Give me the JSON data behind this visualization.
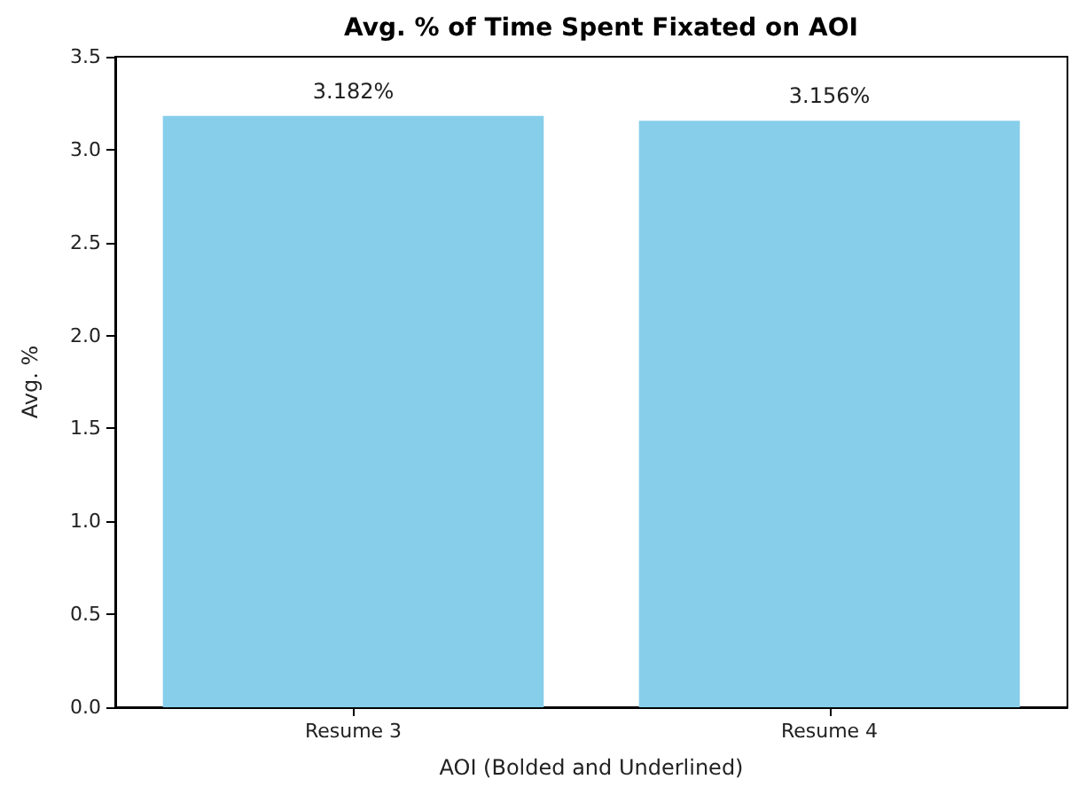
{
  "chart_data": {
    "type": "bar",
    "title": "Avg. % of Time Spent Fixated on AOI",
    "xlabel": "AOI (Bolded and Underlined)",
    "ylabel": "Avg. %",
    "categories": [
      "Resume 3",
      "Resume 4"
    ],
    "values": [
      3.182,
      3.156
    ],
    "value_labels": [
      "3.182%",
      "3.156%"
    ],
    "color": "#87ceeb",
    "ylim": [
      0,
      3.5
    ],
    "yticks": [
      {
        "value": 0,
        "label": "0.0"
      },
      {
        "value": 0.5,
        "label": "0.5"
      },
      {
        "value": 1,
        "label": "1.0"
      },
      {
        "value": 1.5,
        "label": "1.5"
      },
      {
        "value": 2,
        "label": "2.0"
      },
      {
        "value": 2.5,
        "label": "2.5"
      },
      {
        "value": 3,
        "label": "3.0"
      },
      {
        "value": 3.5,
        "label": "3.5"
      }
    ],
    "grid": false
  }
}
